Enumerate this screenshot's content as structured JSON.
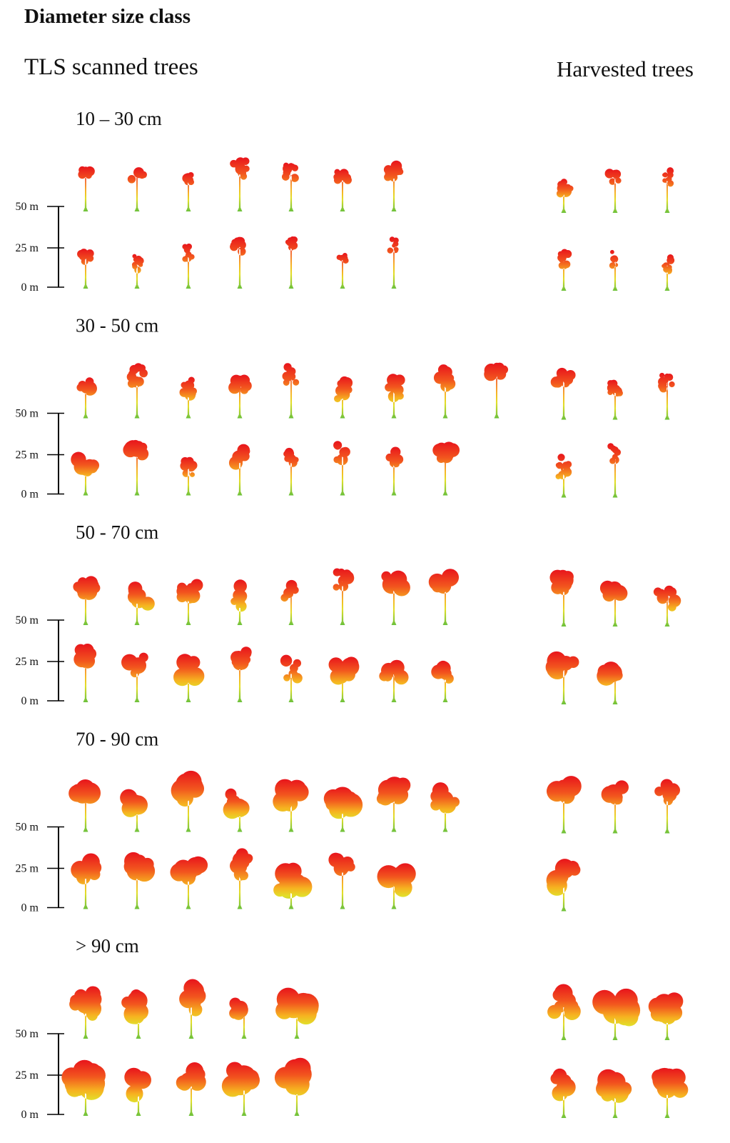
{
  "header": {
    "title": "Diameter size class",
    "left_heading": "TLS scanned trees",
    "right_heading": "Harvested trees"
  },
  "sections": [
    {
      "label": "10 – 30 cm",
      "scale": [
        "50 m",
        "25 m",
        "0 m"
      ]
    },
    {
      "label": "30 - 50 cm",
      "scale": [
        "50 m",
        "25 m",
        "0 m"
      ]
    },
    {
      "label": "50 - 70 cm",
      "scale": [
        "50 m",
        "25 m",
        "0 m"
      ]
    },
    {
      "label": "70 - 90 cm",
      "scale": [
        "50 m",
        "25 m",
        "0 m"
      ]
    },
    {
      "label": "> 90 cm",
      "scale": [
        "50 m",
        "25 m",
        "0 m"
      ]
    }
  ]
}
